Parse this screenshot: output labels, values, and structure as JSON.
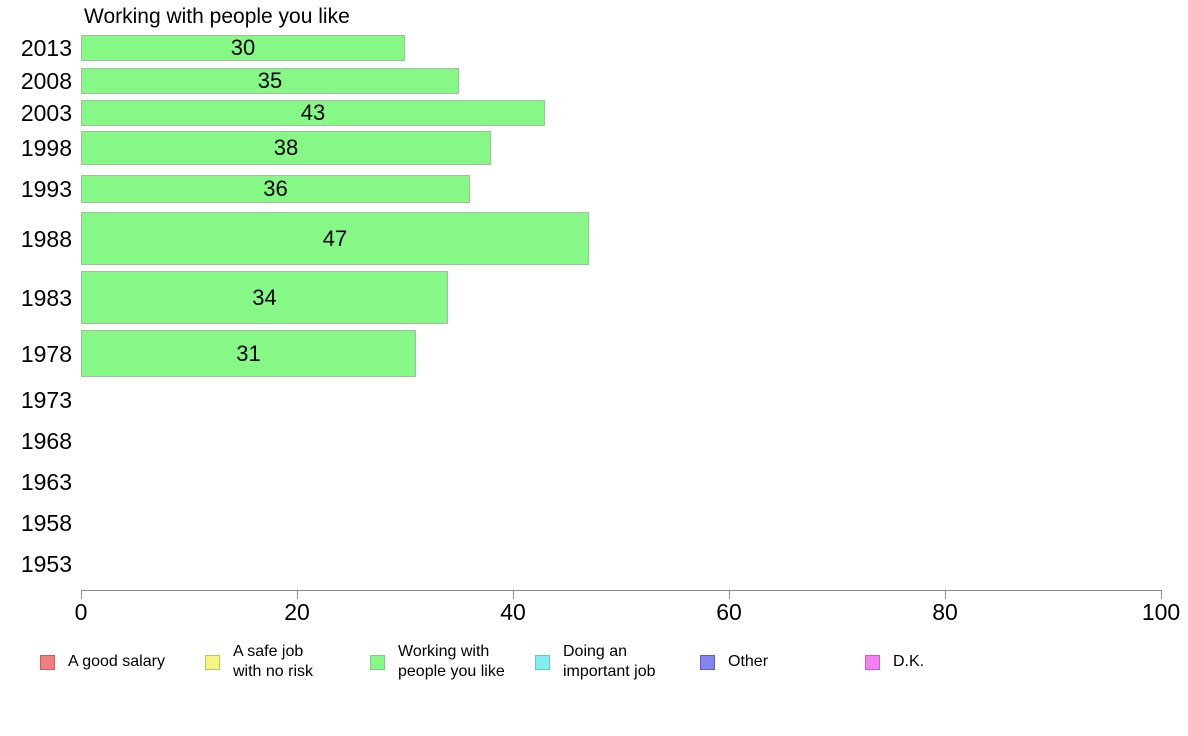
{
  "title": "Working with people you like",
  "chart_data": {
    "type": "bar",
    "orientation": "horizontal",
    "title": "Working with people you like",
    "categories": [
      "2013",
      "2008",
      "2003",
      "1998",
      "1993",
      "1988",
      "1983",
      "1978",
      "1973",
      "1968",
      "1963",
      "1958",
      "1953"
    ],
    "values": [
      30,
      35,
      43,
      38,
      36,
      47,
      34,
      31,
      null,
      null,
      null,
      null,
      null
    ],
    "value_labels_shown": true,
    "xlabel": "",
    "ylabel": "",
    "xlim": [
      0,
      100
    ],
    "x_ticks": [
      0,
      20,
      40,
      60,
      80,
      100
    ],
    "grid": false,
    "bar_color": "#85F885",
    "bar_border_color": "#9FBF9F",
    "axis_color": "#8A8A8A",
    "legend_position": "bottom",
    "legend": [
      {
        "label": "A good salary",
        "color": "#F08080",
        "border": "#C85F5F"
      },
      {
        "label": "A safe job with no risk",
        "color": "#F5F584",
        "border": "#C2C25A"
      },
      {
        "label": "Working with people you like",
        "color": "#85F885",
        "border": "#86C886"
      },
      {
        "label": "Doing an important job",
        "color": "#82EEEE",
        "border": "#6CC4C4"
      },
      {
        "label": "Other",
        "color": "#8585F0",
        "border": "#5E5EC8"
      },
      {
        "label": "D.K.",
        "color": "#F280F2",
        "border": "#C85FC8"
      }
    ]
  }
}
